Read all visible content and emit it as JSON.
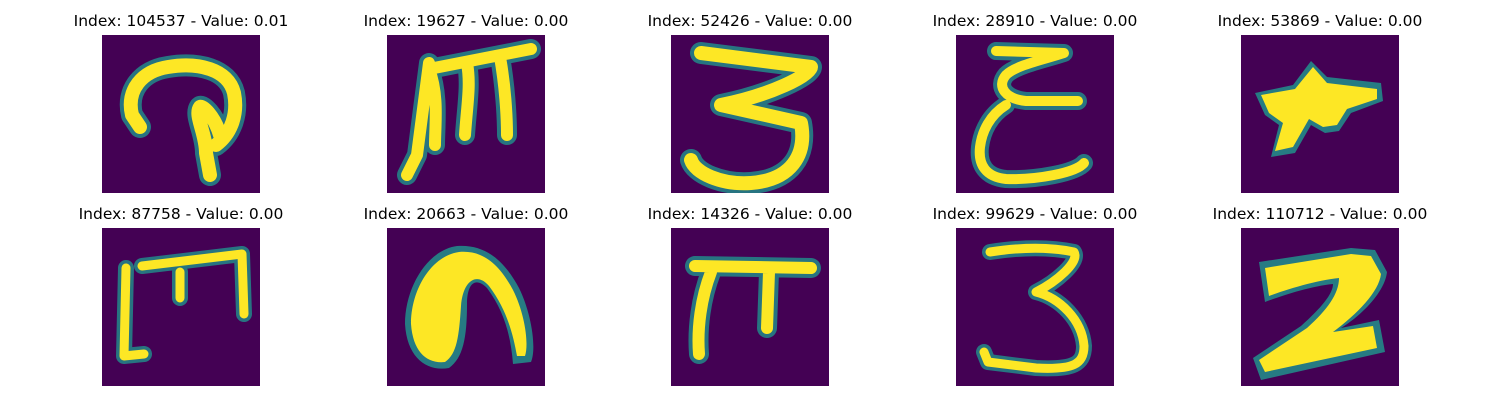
{
  "colors": {
    "background": "#440154",
    "mid_low": "#31688e",
    "mid": "#21918c",
    "mid_high": "#5ec962",
    "foreground": "#fde725"
  },
  "panels": [
    {
      "title": "Index: 104537 - Value: 0.01",
      "glyph": "q-loop-shape"
    },
    {
      "title": "Index: 19627 - Value: 0.00",
      "glyph": "m-shape"
    },
    {
      "title": "Index: 52426 - Value: 0.00",
      "glyph": "3-shape"
    },
    {
      "title": "Index: 28910 - Value: 0.00",
      "glyph": "epsilon-shape"
    },
    {
      "title": "Index: 53869 - Value: 0.00",
      "glyph": "star-shape"
    },
    {
      "title": "Index: 87758 - Value: 0.00",
      "glyph": "bracket-m-shape"
    },
    {
      "title": "Index: 20663 - Value: 0.00",
      "glyph": "n-blob-shape"
    },
    {
      "title": "Index: 14326 - Value: 0.00",
      "glyph": "pi-shape"
    },
    {
      "title": "Index: 99629 - Value: 0.00",
      "glyph": "3-shape"
    },
    {
      "title": "Index: 110712 - Value: 0.00",
      "glyph": "z-blob-shape"
    }
  ]
}
